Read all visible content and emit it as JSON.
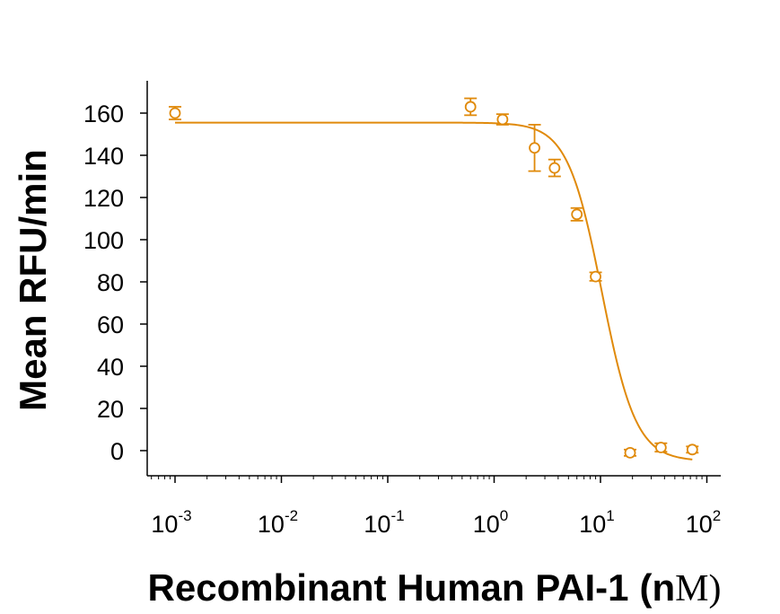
{
  "chart_data": {
    "type": "scatter",
    "xlabel": "Recombinant Human PAI-1",
    "xlabel_unit_open": "(n",
    "xlabel_unit_mu": "M",
    "xlabel_unit_close": ")",
    "ylabel": "Mean RFU/min",
    "x_scale": "log",
    "xlim": [
      0.00068,
      110
    ],
    "ylim": [
      -12,
      175
    ],
    "grid": false,
    "color": "#E08A0B",
    "y_ticks": [
      0,
      20,
      40,
      60,
      80,
      100,
      120,
      140,
      160
    ],
    "x_tick_labels": [
      {
        "value": 0.001,
        "base": "10",
        "exp": "-3"
      },
      {
        "value": 0.01,
        "base": "10",
        "exp": "-2"
      },
      {
        "value": 0.1,
        "base": "10",
        "exp": "-1"
      },
      {
        "value": 1,
        "base": "10",
        "exp": "0"
      },
      {
        "value": 10,
        "base": "10",
        "exp": "1"
      },
      {
        "value": 100,
        "base": "10",
        "exp": "2"
      }
    ],
    "points": [
      {
        "x": 0.001,
        "y": 160,
        "err": 3
      },
      {
        "x": 0.6,
        "y": 163,
        "err": 4
      },
      {
        "x": 1.2,
        "y": 157,
        "err": 2.5
      },
      {
        "x": 2.4,
        "y": 143.5,
        "err": 11
      },
      {
        "x": 3.7,
        "y": 134,
        "err": 4
      },
      {
        "x": 6,
        "y": 112,
        "err": 3
      },
      {
        "x": 9,
        "y": 82.5,
        "err": 2
      },
      {
        "x": 19,
        "y": -1,
        "err": 1.5
      },
      {
        "x": 37,
        "y": 1.5,
        "err": 2
      },
      {
        "x": 73,
        "y": 0.5,
        "err": 1.5
      }
    ],
    "fit_curve": {
      "model": "4PL",
      "top": 155.5,
      "bottom": -5,
      "ic50": 10.3,
      "hill": 2.7,
      "x_from": 0.001,
      "x_to": 73
    }
  }
}
